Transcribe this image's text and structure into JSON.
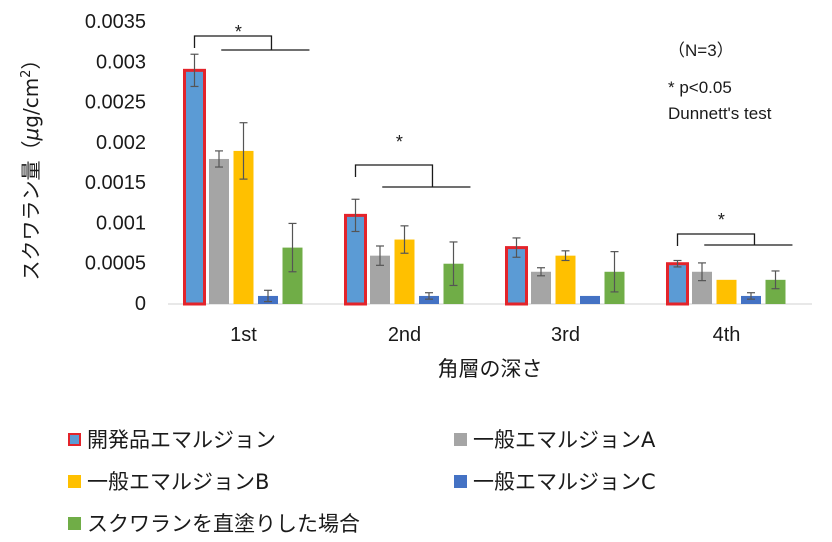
{
  "chart_data": {
    "type": "bar",
    "categories": [
      "1st",
      "2nd",
      "3rd",
      "4th"
    ],
    "xlabel": "角層の深さ",
    "ylabel_main": "スクワラン量（",
    "ylabel_mu": "μ",
    "ylabel_unit": "g/cm",
    "ylabel_sup": "2",
    "ylabel_end": "）",
    "ylim": [
      0,
      0.0035
    ],
    "yticks": [
      "0",
      "0.0005",
      "0.001",
      "0.0015",
      "0.002",
      "0.0025",
      "0.003",
      "0.0035"
    ],
    "series": [
      {
        "name": "開発品エマルジョン",
        "color": "#5b9bd5",
        "border": "#e3242b",
        "values": [
          0.0029,
          0.0011,
          0.0007,
          0.0005
        ],
        "errors": [
          0.0002,
          0.0002,
          0.00012,
          4e-05
        ]
      },
      {
        "name": "一般エマルジョンA",
        "color": "#a5a5a5",
        "border": "",
        "values": [
          0.0018,
          0.0006,
          0.0004,
          0.0004
        ],
        "errors": [
          0.0001,
          0.00012,
          5e-05,
          0.00011
        ]
      },
      {
        "name": "一般エマルジョンB",
        "color": "#ffc000",
        "border": "",
        "values": [
          0.0019,
          0.0008,
          0.0006,
          0.0003
        ],
        "errors": [
          0.00035,
          0.00017,
          6e-05,
          0.0
        ]
      },
      {
        "name": "一般エマルジョンC",
        "color": "#4472c4",
        "border": "",
        "values": [
          0.0001,
          0.0001,
          0.0001,
          0.0001
        ],
        "errors": [
          7e-05,
          4e-05,
          0.0,
          4e-05
        ]
      },
      {
        "name": "スクワランを直塗りした場合",
        "color": "#70ad47",
        "border": "",
        "values": [
          0.0007,
          0.0005,
          0.0004,
          0.0003
        ],
        "errors": [
          0.0003,
          0.00027,
          0.00025,
          0.00011
        ]
      }
    ],
    "significance_mark": "*",
    "legend_position": "bottom"
  },
  "annotations": {
    "n_label": "（N=3）",
    "p_label": "* p<0.05",
    "test_label": "Dunnett's test"
  }
}
